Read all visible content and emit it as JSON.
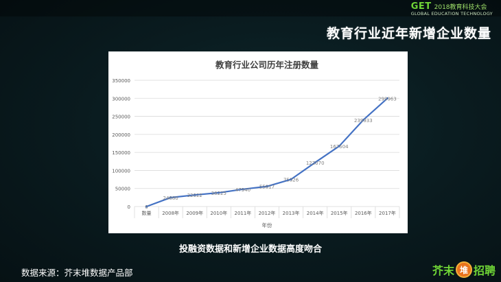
{
  "header": {
    "logo_mark": "GET",
    "logo_sub": "2018教育科技大会",
    "logo_en": "GLOBAL EDUCATION TECHNOLOGY"
  },
  "slide_title": "教育行业近年新增企业数量",
  "caption": "投融资数据和新增企业数据高度吻合",
  "source": "数据来源：芥末堆数据产品部",
  "brand": {
    "text1": "芥末",
    "badge": "堆",
    "text2": "招聘"
  },
  "colors": {
    "line": "#4472c4",
    "grid": "#d9d9d9",
    "axis_text": "#595959",
    "accent": "#6fd436"
  },
  "chart_data": {
    "type": "line",
    "title": "教育行业公司历年注册数量",
    "xlabel": "年份",
    "ylabel": "",
    "categories": [
      "数量",
      "2008年",
      "2009年",
      "2010年",
      "2011年",
      "2012年",
      "2013年",
      "2014年",
      "2015年",
      "2016年",
      "2017年"
    ],
    "series": [
      {
        "values": [
          0,
          24880,
          32022,
          38225,
          47940,
          55817,
          75326,
          122070,
          167504,
          239933,
          299963
        ]
      }
    ],
    "data_labels": [
      "0",
      "24880",
      "32022",
      "38225",
      "47940",
      "55817",
      "75326",
      "122070",
      "167504",
      "239933",
      "299963"
    ],
    "ylim": [
      0,
      350000
    ],
    "yticks": [
      "0",
      "50000",
      "100000",
      "150000",
      "200000",
      "250000",
      "300000",
      "350000"
    ],
    "ytick_values": [
      0,
      50000,
      100000,
      150000,
      200000,
      250000,
      300000,
      350000
    ],
    "grid": true,
    "legend": "none"
  }
}
